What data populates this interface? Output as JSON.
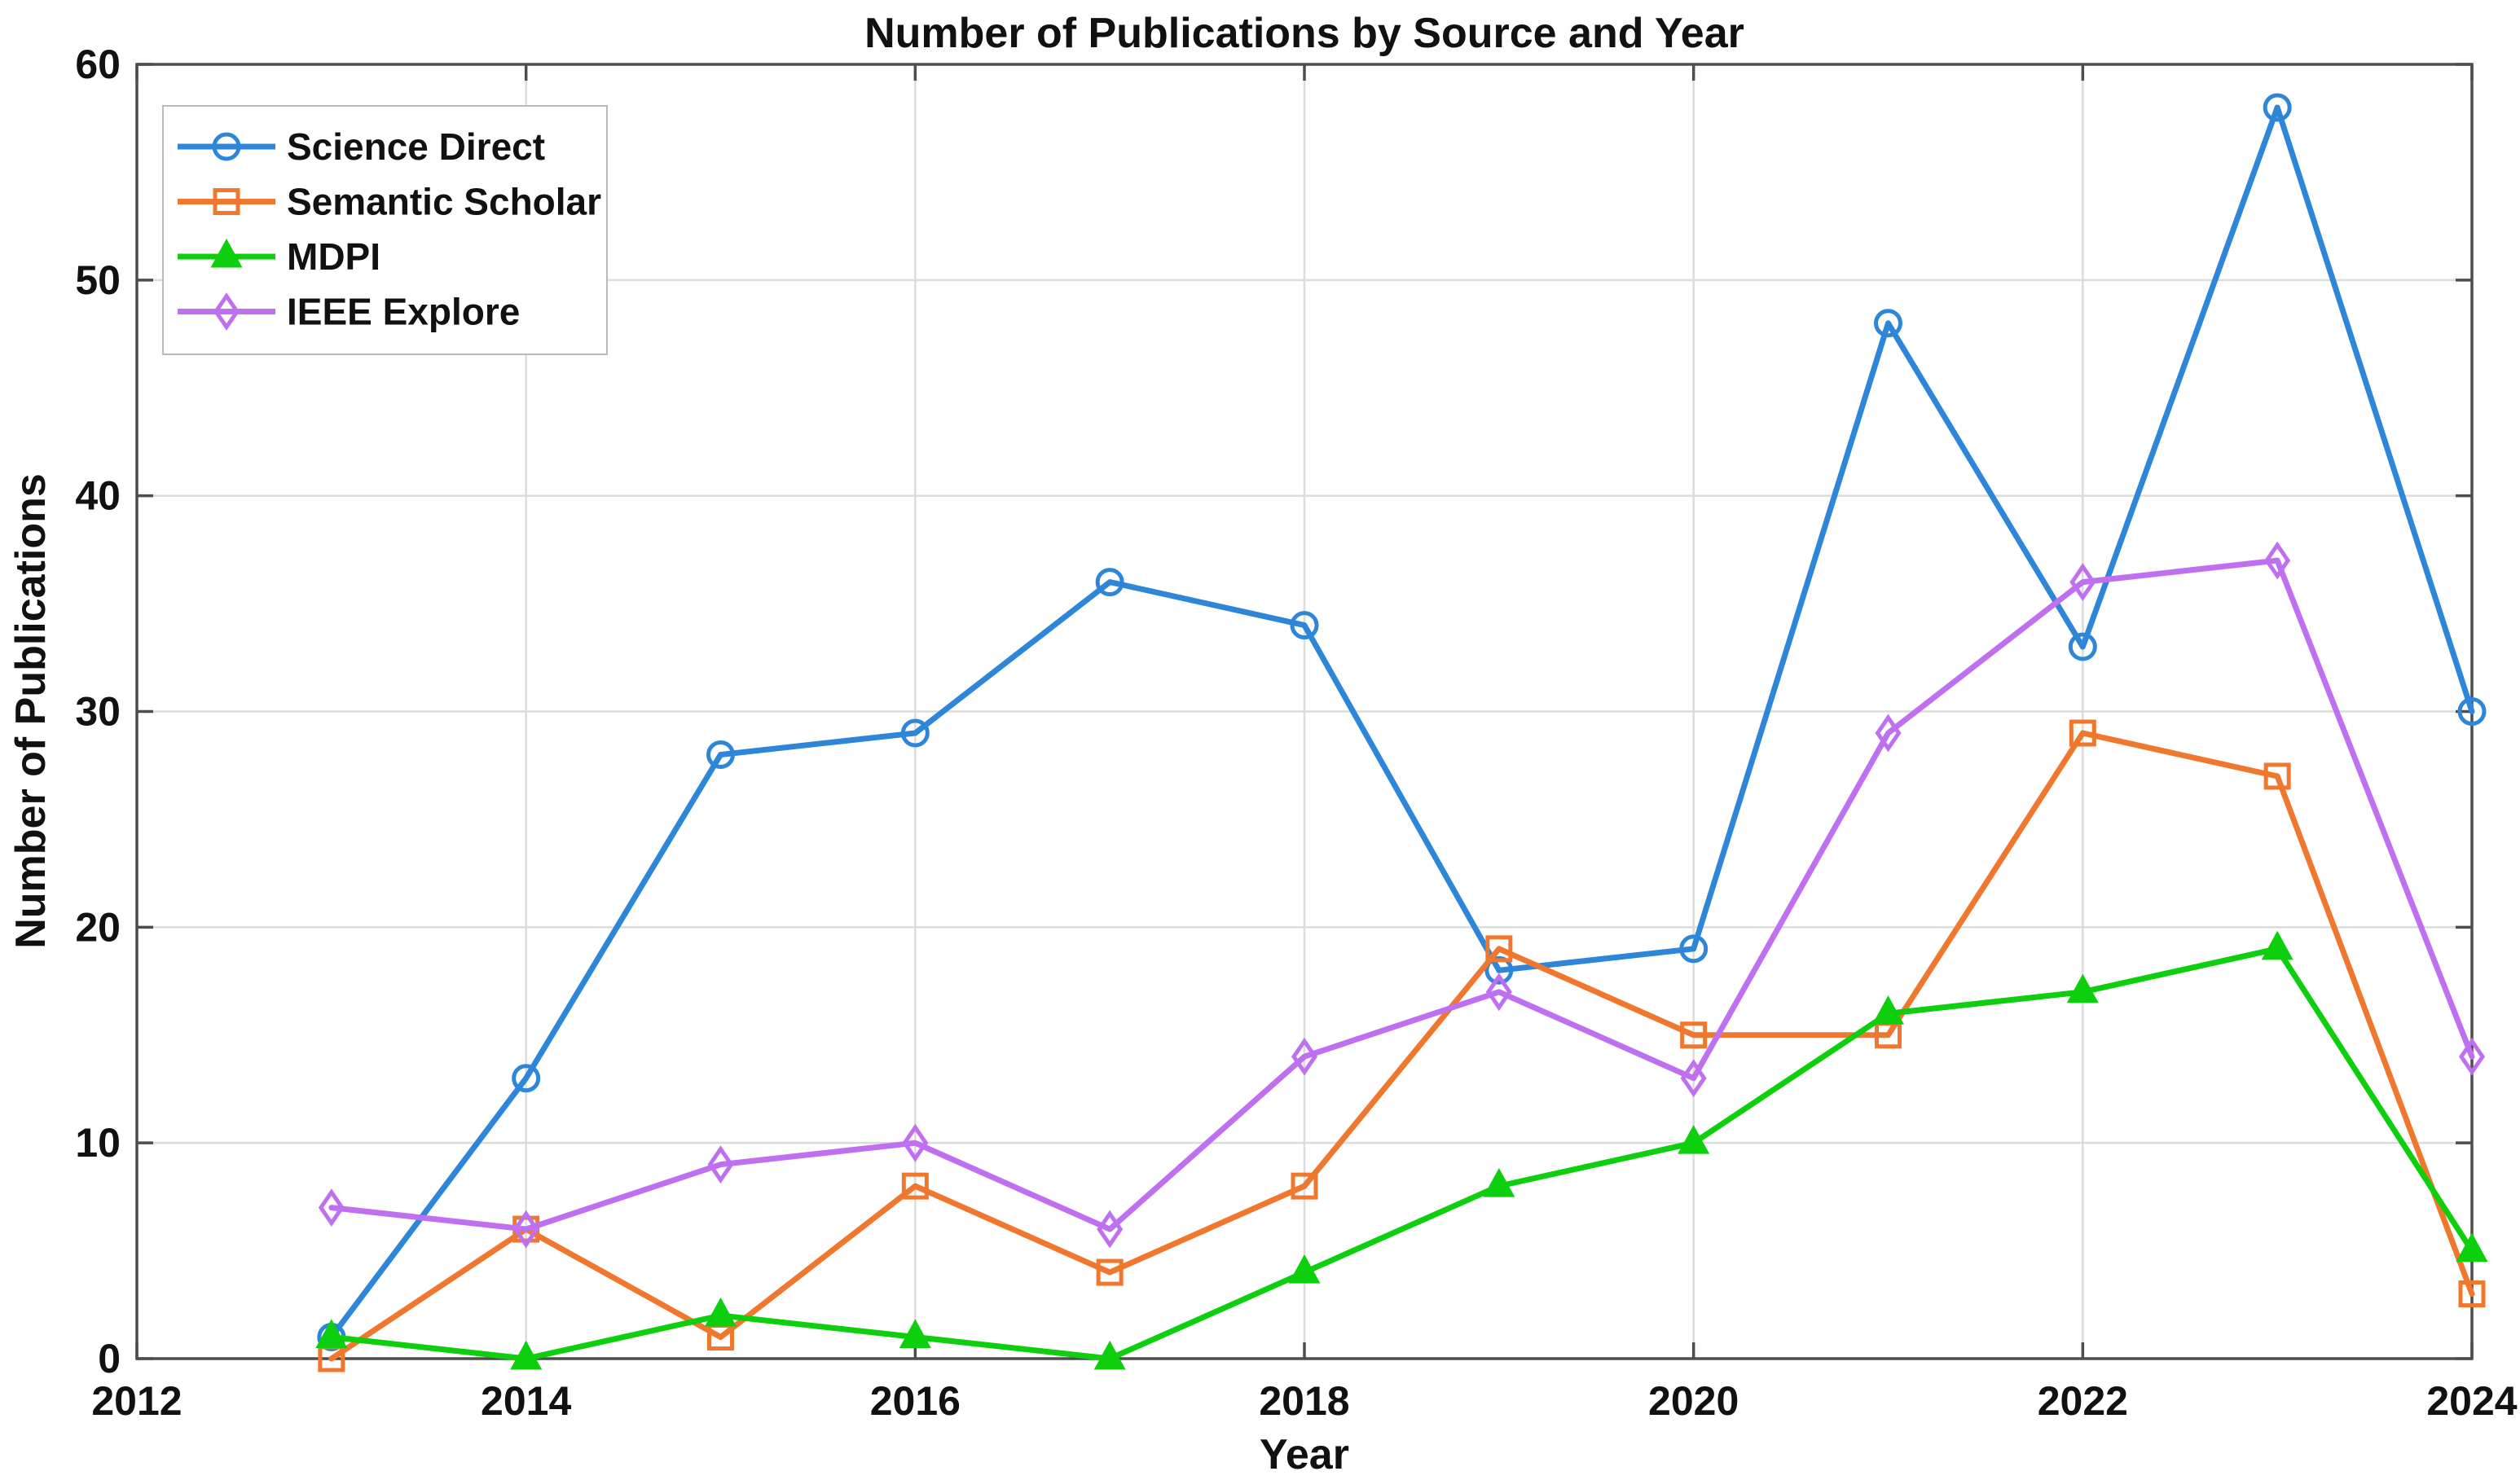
{
  "chart_data": {
    "type": "line",
    "title": "Number of Publications by Source and Year",
    "xlabel": "Year",
    "ylabel": "Number of Publications",
    "xlim": [
      2012,
      2024
    ],
    "ylim": [
      0,
      60
    ],
    "xticks": [
      2012,
      2014,
      2016,
      2018,
      2020,
      2022,
      2024
    ],
    "yticks": [
      0,
      10,
      20,
      30,
      40,
      50,
      60
    ],
    "grid": true,
    "legend_position": "top-left",
    "x": [
      2013,
      2014,
      2015,
      2016,
      2017,
      2018,
      2019,
      2020,
      2021,
      2022,
      2023,
      2024
    ],
    "series": [
      {
        "name": "Science Direct",
        "color": "#2E86D8",
        "marker": "circle",
        "values": [
          1,
          13,
          28,
          29,
          36,
          34,
          18,
          19,
          48,
          33,
          58,
          30
        ]
      },
      {
        "name": "Semantic Scholar",
        "color": "#F0772E",
        "marker": "square",
        "values": [
          0,
          6,
          1,
          8,
          4,
          8,
          19,
          15,
          15,
          29,
          27,
          3
        ]
      },
      {
        "name": "MDPI",
        "color": "#0DCF0D",
        "marker": "triangle",
        "values": [
          1,
          0,
          2,
          1,
          0,
          4,
          8,
          10,
          16,
          17,
          19,
          5
        ]
      },
      {
        "name": "IEEE Explore",
        "color": "#BE70F0",
        "marker": "diamond",
        "values": [
          7,
          6,
          9,
          10,
          6,
          14,
          17,
          13,
          29,
          36,
          37,
          14
        ]
      }
    ]
  },
  "colors": {
    "axis": "#4d4d4d",
    "grid": "#dcdcdc",
    "text": "#111111",
    "legend_border": "#b9b9b9",
    "background": "#ffffff"
  }
}
